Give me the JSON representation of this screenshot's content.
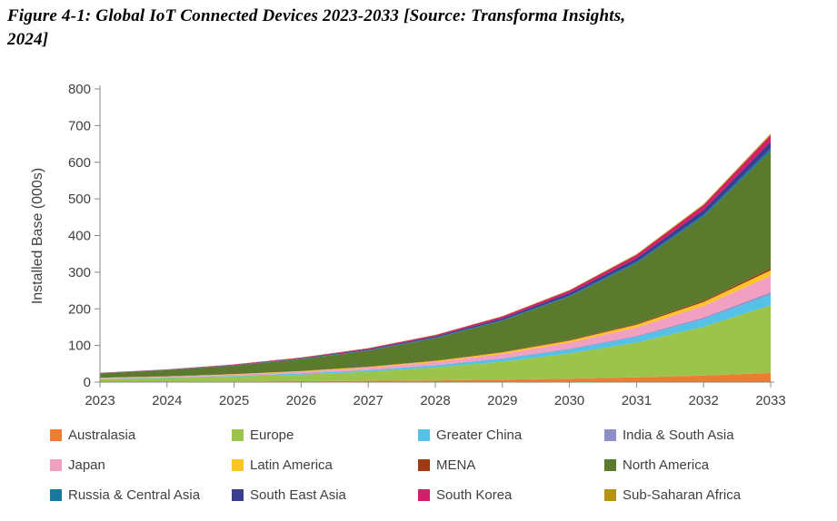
{
  "figure": {
    "title_line1": "Figure 4-1: Global IoT Connected Devices 2023-2033 [Source: Transforma Insights,",
    "title_line2": "2024]"
  },
  "chart_data": {
    "type": "area",
    "stacked": true,
    "title": "",
    "xlabel": "",
    "ylabel": "Installed Base (000s)",
    "ylim": [
      0,
      800
    ],
    "yticks": [
      0,
      100,
      200,
      300,
      400,
      500,
      600,
      700,
      800
    ],
    "x": [
      2023,
      2024,
      2025,
      2026,
      2027,
      2028,
      2029,
      2030,
      2031,
      2032,
      2033
    ],
    "grid": false,
    "legend_position": "bottom",
    "axis_color": "#898989",
    "series": [
      {
        "name": "Australasia",
        "color": "#ED7D31",
        "values": [
          1.0,
          1.3,
          1.8,
          2.5,
          3.5,
          4.8,
          6.7,
          9.3,
          13.0,
          18.0,
          25.0
        ]
      },
      {
        "name": "Europe",
        "color": "#9CC34A",
        "values": [
          7.0,
          9.5,
          13.0,
          18.0,
          25.0,
          35.0,
          49.0,
          69.0,
          95.0,
          133.0,
          185.0
        ]
      },
      {
        "name": "Greater China",
        "color": "#56C1E7",
        "values": [
          1.1,
          1.5,
          2.1,
          3.0,
          4.1,
          5.7,
          8.0,
          11.0,
          15.5,
          21.5,
          30.0
        ]
      },
      {
        "name": "India & South Asia",
        "color": "#8F8FC8",
        "values": [
          0.2,
          0.3,
          0.4,
          0.5,
          0.7,
          1.0,
          1.4,
          1.9,
          2.6,
          3.6,
          5.0
        ]
      },
      {
        "name": "Japan",
        "color": "#F1A0C2",
        "values": [
          1.7,
          2.3,
          3.2,
          4.5,
          6.2,
          8.6,
          12.0,
          16.7,
          23.0,
          32.0,
          45.0
        ]
      },
      {
        "name": "Latin America",
        "color": "#FDC32B",
        "values": [
          0.6,
          0.8,
          1.1,
          1.5,
          2.1,
          2.9,
          4.0,
          5.6,
          7.7,
          10.7,
          15.0
        ]
      },
      {
        "name": "MENA",
        "color": "#9E3B14",
        "values": [
          0.2,
          0.3,
          0.4,
          0.5,
          0.7,
          1.0,
          1.4,
          1.9,
          2.6,
          3.6,
          5.0
        ]
      },
      {
        "name": "North America",
        "color": "#5C7A2E",
        "values": [
          12.0,
          16.5,
          23.0,
          32.0,
          44.0,
          61.0,
          85.0,
          118.0,
          165.0,
          229.0,
          320.0
        ]
      },
      {
        "name": "Russia & Central Asia",
        "color": "#17799E",
        "values": [
          0.3,
          0.4,
          0.6,
          0.8,
          1.1,
          1.5,
          2.1,
          3.0,
          4.1,
          5.7,
          8.0
        ]
      },
      {
        "name": "South East Asia",
        "color": "#3B3E8E",
        "values": [
          0.7,
          0.9,
          1.3,
          1.8,
          2.5,
          3.4,
          4.8,
          6.7,
          9.3,
          12.9,
          18.0
        ]
      },
      {
        "name": "South Korea",
        "color": "#D31F68",
        "values": [
          0.7,
          0.9,
          1.3,
          1.8,
          2.5,
          3.4,
          4.8,
          6.7,
          9.3,
          12.9,
          18.0
        ]
      },
      {
        "name": "Sub-Saharan Africa",
        "color": "#B5940B",
        "values": [
          0.2,
          0.2,
          0.3,
          0.4,
          0.6,
          0.8,
          1.1,
          1.5,
          2.1,
          2.9,
          4.0
        ]
      }
    ]
  }
}
